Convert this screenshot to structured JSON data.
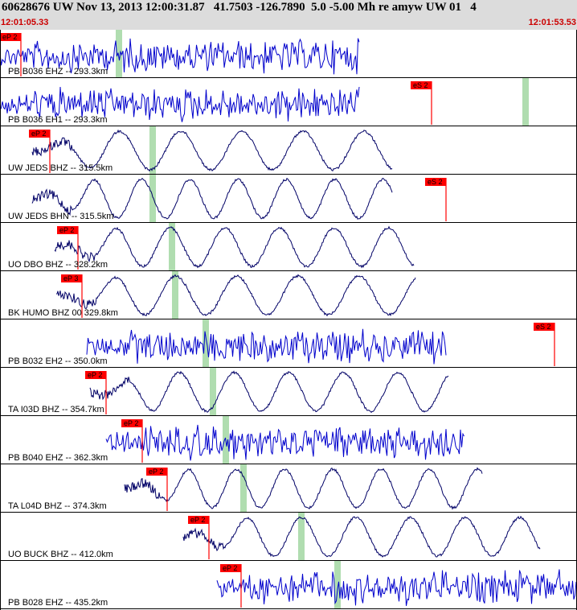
{
  "header": {
    "title": "60628676 UW Nov 13, 2013 12:00:31.87   41.7503 -126.7890  5.0 -5.00 Mh re amyw UW 01   4",
    "time_start": "12:01:05.33",
    "time_end": "12:01:53.53"
  },
  "colors": {
    "header_bg": "#dcdcdc",
    "time_text": "#cc0000",
    "pick_flag": "#ff0000",
    "trace_broadband": "#000066",
    "trace_shortperiod": "#0000cc",
    "green_marker": "#b0ddb0"
  },
  "traces": [
    {
      "label": "PB B036 EHZ -- 293.3km",
      "pick": "eP 2",
      "pick_kind": "P"
    },
    {
      "label": "PB B036 EH1 -- 293.3km",
      "pick": "eS 2",
      "pick_kind": "S"
    },
    {
      "label": "UW JEDS BHZ -- 315.5km",
      "pick": "eP 2",
      "pick_kind": "P"
    },
    {
      "label": "UW JEDS BHN -- 315.5km",
      "pick": "eS 2",
      "pick_kind": "S"
    },
    {
      "label": "UO DBO BHZ -- 328.2km",
      "pick": "eP 2",
      "pick_kind": "P"
    },
    {
      "label": "BK HUMO BHZ 00 329.8km",
      "pick": "eP 3",
      "pick_kind": "P"
    },
    {
      "label": "PB B032 EH2 -- 350.0km",
      "pick": "eS 2",
      "pick_kind": "S"
    },
    {
      "label": "TA I03D BHZ -- 354.7km",
      "pick": "eP 2",
      "pick_kind": "P"
    },
    {
      "label": "PB B040 EHZ -- 362.3km",
      "pick": "eP 2",
      "pick_kind": "P"
    },
    {
      "label": "TA L04D BHZ -- 374.3km",
      "pick": "eP 2",
      "pick_kind": "P"
    },
    {
      "label": "UO BUCK BHZ -- 412.0km",
      "pick": "eP 2",
      "pick_kind": "P"
    },
    {
      "label": "PB B028 EHZ -- 435.2km",
      "pick": "eP 2",
      "pick_kind": "P"
    }
  ]
}
